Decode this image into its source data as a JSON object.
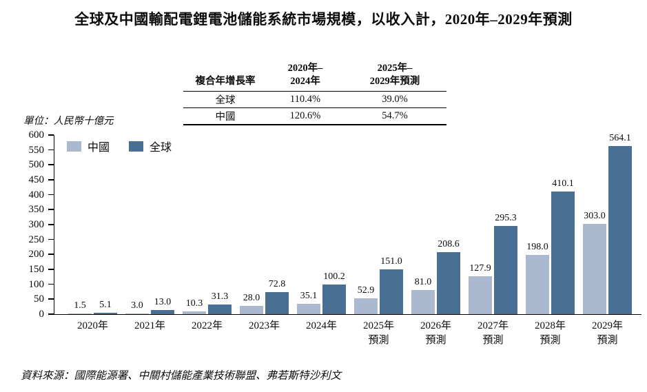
{
  "title": "全球及中國輸配電鋰電池儲能系統市場規模，以收入計，2020年–2029年預測",
  "cagr_table": {
    "metric_header": "複合年增長率",
    "columns": [
      {
        "line1": "2020年–",
        "line2": "2024年"
      },
      {
        "line1": "2025年–",
        "line2": "2029年預測"
      }
    ],
    "rows": [
      {
        "label": "全球",
        "col1": "110.4%",
        "col2": "39.0%"
      },
      {
        "label": "中國",
        "col1": "120.6%",
        "col2": "54.7%"
      }
    ]
  },
  "unit_label": "單位：人民幣十億元",
  "source": "資料來源：國際能源署、中關村儲能產業技術聯盟、弗若斯特沙利文",
  "colors": {
    "china_bar": "#aab9d0",
    "global_bar": "#4a6f94",
    "axis": "#000000",
    "text": "#0b0b0b"
  },
  "chart_data": {
    "type": "bar",
    "title": "全球及中國輸配電鋰電池儲能系統市場規模，以收入計，2020年–2029年預測",
    "ylabel": "人民幣十億元",
    "ylim": [
      0,
      600
    ],
    "ytick_step": 50,
    "grid": false,
    "legend_position": "top-left-inside",
    "categories": [
      {
        "line1": "2020年",
        "line2": ""
      },
      {
        "line1": "2021年",
        "line2": ""
      },
      {
        "line1": "2022年",
        "line2": ""
      },
      {
        "line1": "2023年",
        "line2": ""
      },
      {
        "line1": "2024年",
        "line2": ""
      },
      {
        "line1": "2025年",
        "line2": "預測"
      },
      {
        "line1": "2026年",
        "line2": "預測"
      },
      {
        "line1": "2027年",
        "line2": "預測"
      },
      {
        "line1": "2028年",
        "line2": "預測"
      },
      {
        "line1": "2029年",
        "line2": "預測"
      }
    ],
    "series": [
      {
        "name": "中國",
        "color": "#aab9d0",
        "values": [
          1.5,
          3.0,
          10.3,
          28.0,
          35.1,
          52.9,
          81.0,
          127.9,
          198.0,
          303.0
        ]
      },
      {
        "name": "全球",
        "color": "#4a6f94",
        "values": [
          5.1,
          13.0,
          31.3,
          72.8,
          100.2,
          151.0,
          208.6,
          295.3,
          410.1,
          564.1
        ]
      }
    ]
  }
}
